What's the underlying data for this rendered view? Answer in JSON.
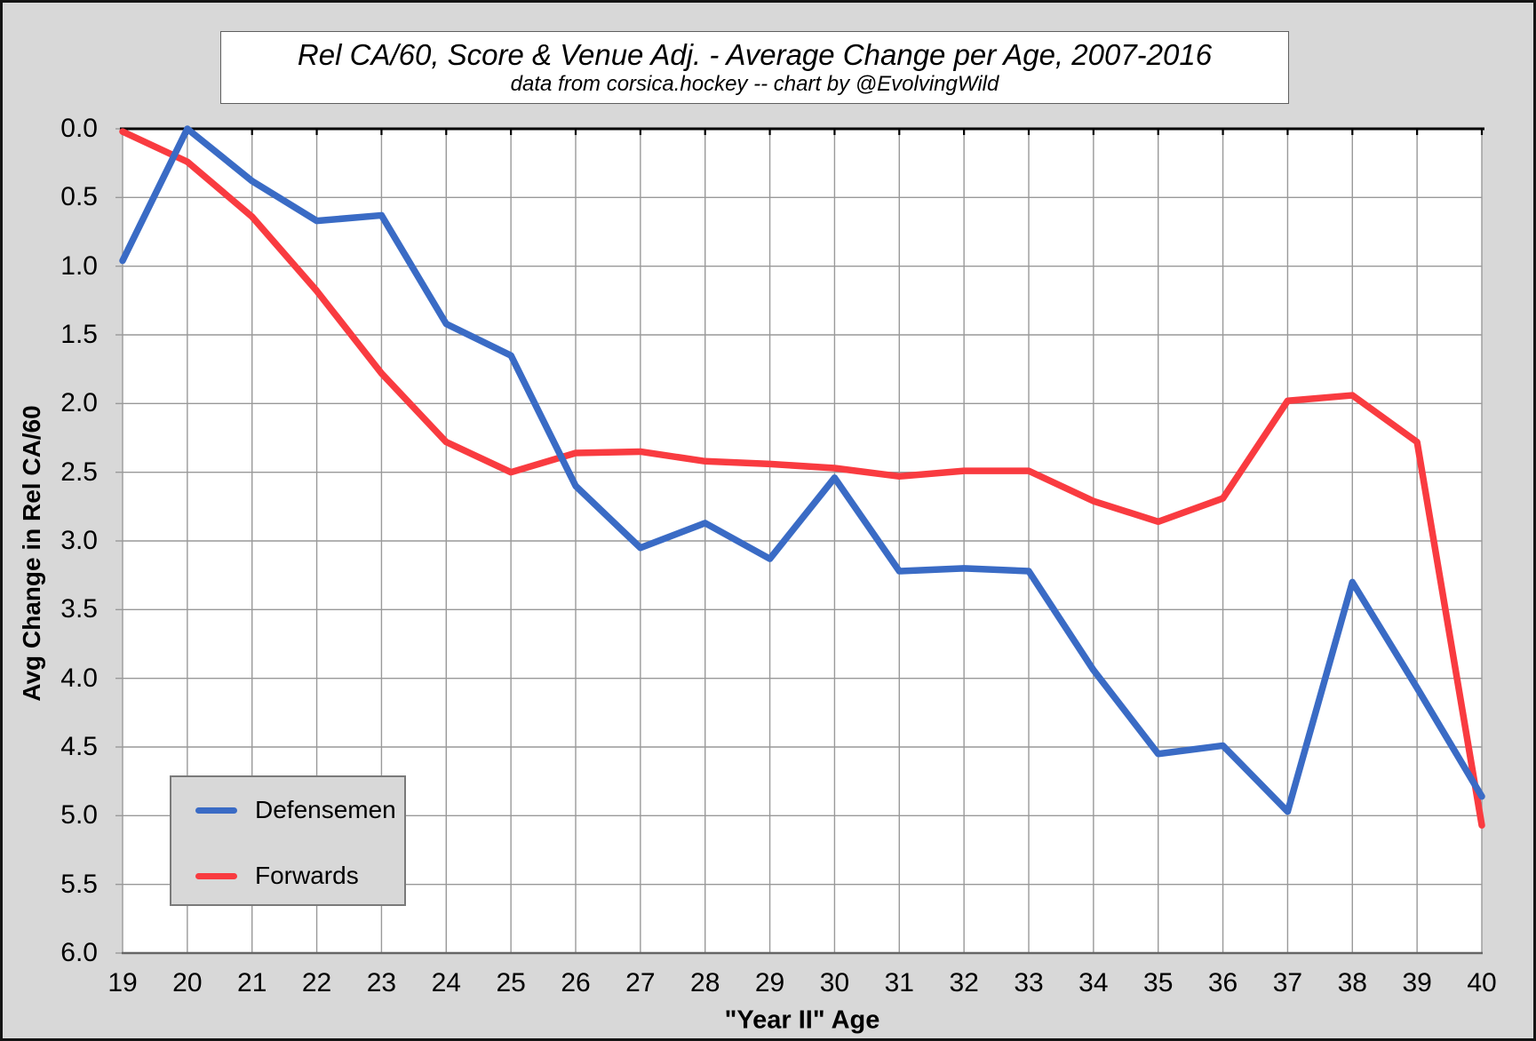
{
  "header": {
    "title": "Rel CA/60, Score & Venue Adj. - Average Change per Age, 2007-2016",
    "subtitle": "data from corsica.hockey -- chart by @EvolvingWild"
  },
  "colors": {
    "defensemen_line": "#3A6BC5",
    "forwards_line": "#F93B40",
    "background": "#D8D8D8",
    "plot_background": "#FFFFFF",
    "gridline": "#999999",
    "top_axis": "#000000",
    "bottom_axis": "#666666",
    "text": "#000000"
  },
  "legend": {
    "items": [
      {
        "label": "Defensemen",
        "color": "#3A6BC5"
      },
      {
        "label": "Forwards",
        "color": "#F93B40"
      }
    ]
  },
  "chart_data": {
    "type": "line",
    "title": "Rel CA/60, Score & Venue Adj. - Average Change per Age, 2007-2016",
    "subtitle": "data from corsica.hockey -- chart by @EvolvingWild",
    "xlabel": "\"Year II\" Age",
    "ylabel": "Avg Change in Rel CA/60",
    "x": [
      19,
      20,
      21,
      22,
      23,
      24,
      25,
      26,
      27,
      28,
      29,
      30,
      31,
      32,
      33,
      34,
      35,
      36,
      37,
      38,
      39,
      40
    ],
    "x_tick_labels": [
      "19",
      "20",
      "21",
      "22",
      "23",
      "24",
      "25",
      "26",
      "27",
      "28",
      "29",
      "30",
      "31",
      "32",
      "33",
      "34",
      "35",
      "36",
      "37",
      "38",
      "39",
      "40"
    ],
    "y_tick_labels": [
      "0.0",
      "0.5",
      "1.0",
      "1.5",
      "2.0",
      "2.5",
      "3.0",
      "3.5",
      "4.0",
      "4.5",
      "5.0",
      "5.5",
      "6.0"
    ],
    "ylim": [
      0.0,
      6.0
    ],
    "y_tick_step": 0.5,
    "y_axis_inverted": true,
    "grid": true,
    "legend_position": "bottom-left",
    "series": [
      {
        "name": "Defensemen",
        "color": "#3A6BC5",
        "values": [
          0.96,
          0.0,
          0.38,
          0.67,
          0.63,
          1.42,
          1.65,
          2.6,
          3.05,
          2.87,
          3.13,
          2.54,
          3.22,
          3.2,
          3.22,
          3.94,
          4.55,
          4.49,
          4.97,
          3.3,
          4.07,
          4.86
        ]
      },
      {
        "name": "Forwards",
        "color": "#F93B40",
        "values": [
          0.02,
          0.24,
          0.64,
          1.18,
          1.78,
          2.28,
          2.5,
          2.36,
          2.35,
          2.42,
          2.44,
          2.47,
          2.53,
          2.49,
          2.49,
          2.71,
          2.86,
          2.69,
          1.98,
          1.94,
          2.28,
          5.07
        ]
      }
    ]
  }
}
